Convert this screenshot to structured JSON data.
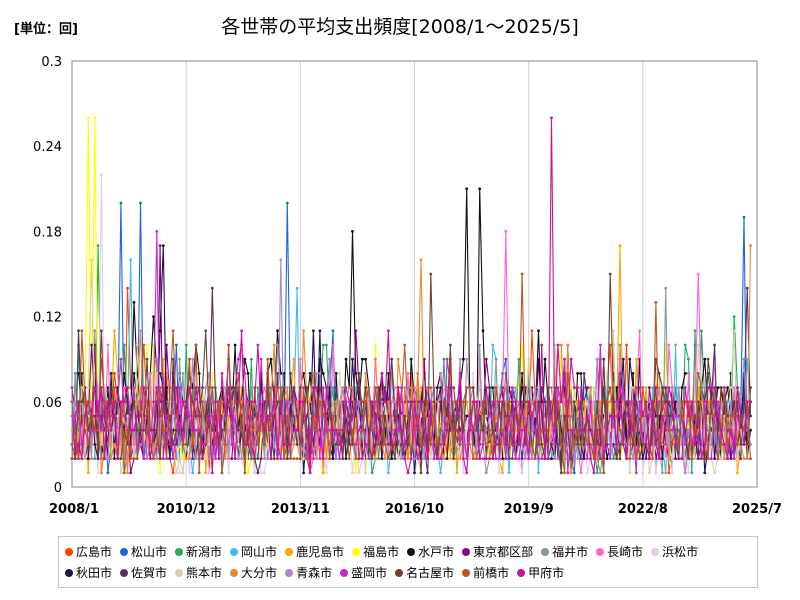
{
  "unit_label": "[単位：回]",
  "title": "各世帯の平均支出頻度[2008/1～2025/5]",
  "chart_data": {
    "type": "line",
    "title": "各世帯の平均支出頻度[2008/1～2025/5]",
    "ylabel": "",
    "xlabel": "",
    "ylim": [
      0,
      0.3
    ],
    "yticks": [
      "0",
      "0.06",
      "0.12",
      "0.18",
      "0.24",
      "0.3"
    ],
    "xticks": [
      "2008/1",
      "2010/12",
      "2013/11",
      "2016/10",
      "2019/9",
      "2022/8",
      "2025/7"
    ],
    "grid": "vertical",
    "legend": "bottom",
    "series": [
      {
        "name": "広島市",
        "color": "#ff4500",
        "peaks": [
          {
            "x": "2009/6",
            "y": 0.14
          }
        ],
        "typical": 0.04
      },
      {
        "name": "松山市",
        "color": "#1e64dc",
        "peaks": [
          {
            "x": "2009/4",
            "y": 0.2
          },
          {
            "x": "2009/10",
            "y": 0.2
          },
          {
            "x": "2013/7",
            "y": 0.2
          },
          {
            "x": "2025/3",
            "y": 0.19
          }
        ],
        "typical": 0.04
      },
      {
        "name": "新潟市",
        "color": "#22aa66",
        "peaks": [
          {
            "x": "2008/9",
            "y": 0.17
          },
          {
            "x": "2024/12",
            "y": 0.12
          }
        ],
        "typical": 0.04
      },
      {
        "name": "岡山市",
        "color": "#44bbee",
        "peaks": [
          {
            "x": "2009/7",
            "y": 0.16
          },
          {
            "x": "2013/10",
            "y": 0.14
          }
        ],
        "typical": 0.04
      },
      {
        "name": "鹿児島市",
        "color": "#ffa500",
        "peaks": [
          {
            "x": "2022/1",
            "y": 0.17
          }
        ],
        "typical": 0.04
      },
      {
        "name": "福島市",
        "color": "#ffff00",
        "peaks": [
          {
            "x": "2008/6",
            "y": 0.26
          },
          {
            "x": "2008/8",
            "y": 0.26
          }
        ],
        "typical": 0.04
      },
      {
        "name": "水戸市",
        "color": "#111111",
        "peaks": [
          {
            "x": "2018/2",
            "y": 0.21
          },
          {
            "x": "2018/6",
            "y": 0.21
          },
          {
            "x": "2015/3",
            "y": 0.18
          }
        ],
        "typical": 0.05
      },
      {
        "name": "東京都区部",
        "color": "#880088",
        "peaks": [
          {
            "x": "2010/4",
            "y": 0.17
          }
        ],
        "typical": 0.04
      },
      {
        "name": "福井市",
        "color": "#889999",
        "peaks": [
          {
            "x": "2023/3",
            "y": 0.14
          }
        ],
        "typical": 0.04
      },
      {
        "name": "長崎市",
        "color": "#ff66cc",
        "peaks": [
          {
            "x": "2019/2",
            "y": 0.18
          },
          {
            "x": "2024/1",
            "y": 0.15
          }
        ],
        "typical": 0.04
      },
      {
        "name": "浜松市",
        "color": "#e6cce6",
        "peaks": [
          {
            "x": "2008/10",
            "y": 0.22
          }
        ],
        "typical": 0.03
      },
      {
        "name": "秋田市",
        "color": "#22114d",
        "peaks": [
          {
            "x": "2010/5",
            "y": 0.17
          }
        ],
        "typical": 0.04
      },
      {
        "name": "佐賀市",
        "color": "#553366",
        "peaks": [
          {
            "x": "2011/8",
            "y": 0.14
          },
          {
            "x": "2025/4",
            "y": 0.14
          }
        ],
        "typical": 0.04
      },
      {
        "name": "熊本市",
        "color": "#d8d0a8",
        "peaks": [
          {
            "x": "2008/7",
            "y": 0.16
          }
        ],
        "typical": 0.04
      },
      {
        "name": "大分市",
        "color": "#ee8833",
        "peaks": [
          {
            "x": "2016/12",
            "y": 0.16
          },
          {
            "x": "2025/5",
            "y": 0.17
          }
        ],
        "typical": 0.04
      },
      {
        "name": "青森市",
        "color": "#aa88cc",
        "peaks": [
          {
            "x": "2013/5",
            "y": 0.16
          }
        ],
        "typical": 0.04
      },
      {
        "name": "盛岡市",
        "color": "#cc22dd",
        "peaks": [
          {
            "x": "2010/3",
            "y": 0.18
          }
        ],
        "typical": 0.04
      },
      {
        "name": "名古屋市",
        "color": "#6b4433",
        "peaks": [
          {
            "x": "2017/3",
            "y": 0.15
          },
          {
            "x": "2021/10",
            "y": 0.15
          }
        ],
        "typical": 0.04
      },
      {
        "name": "前橋市",
        "color": "#bb5522",
        "peaks": [
          {
            "x": "2019/7",
            "y": 0.15
          },
          {
            "x": "2022/12",
            "y": 0.13
          }
        ],
        "typical": 0.04
      },
      {
        "name": "甲府市",
        "color": "#cc1199",
        "peaks": [
          {
            "x": "2020/4",
            "y": 0.26
          }
        ],
        "typical": 0.04
      }
    ]
  }
}
